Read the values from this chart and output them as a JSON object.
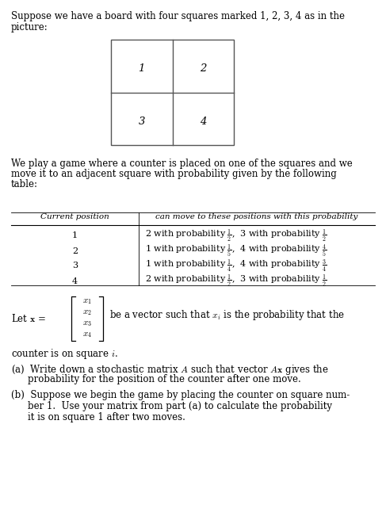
{
  "title_line1": "Suppose we have a board with four squares marked 1, 2, 3, 4 as in the",
  "title_line2": "picture:",
  "board_labels": [
    "1",
    "2",
    "3",
    "4"
  ],
  "game_line1": "We play a game where a counter is placed on one of the squares and we",
  "game_line2": "move it to an adjacent square with probability given by the following",
  "game_line3": "table:",
  "table_header_left": "Current position",
  "table_header_right": "can move to these positions with this probability",
  "table_rows_left": [
    "1",
    "2",
    "3",
    "4"
  ],
  "table_rows_right": [
    "2 with probability $\\frac{1}{2}$,  3 with probability $\\frac{1}{2}$",
    "1 with probability $\\frac{1}{5}$,  4 with probability $\\frac{4}{5}$",
    "1 with probability $\\frac{1}{4}$,  4 with probability $\\frac{3}{4}$",
    "2 with probability $\\frac{1}{2}$,  3 with probability $\\frac{1}{2}$"
  ],
  "vector_entries": [
    "$x_1$",
    "$x_2$",
    "$x_3$",
    "$x_4$"
  ],
  "vec_line1": "be a vector such that $x_i$ is the probability that the",
  "vec_line2": "counter is on square $i$.",
  "part_a_line1": "(a)  Write down a stochastic matrix $A$ such that vector $A\\mathbf{x}$ gives the",
  "part_a_line2": "probability for the position of the counter after one move.",
  "part_b_line1": "(b)  Suppose we begin the game by placing the counter on square num-",
  "part_b_line2": "ber 1.  Use your matrix from part (a) to calculate the probability",
  "part_b_line3": "it is on square 1 after two moves.",
  "bg_color": "#ffffff",
  "text_color": "#000000",
  "figsize": [
    4.87,
    6.51
  ],
  "dpi": 100
}
